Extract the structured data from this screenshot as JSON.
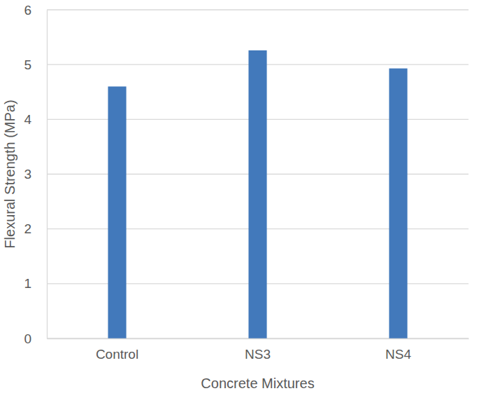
{
  "chart_data": {
    "type": "bar",
    "x_label": "Concrete Mixtures",
    "y_label": "Flexural Strength (MPa)",
    "categories": [
      "Control",
      "NS3",
      "NS4"
    ],
    "values": [
      4.6,
      5.26,
      4.93
    ],
    "color": "#4279bb",
    "ylim": [
      0,
      6
    ],
    "yticks": [
      0,
      1,
      2,
      3,
      4,
      5,
      6
    ],
    "grid": true
  }
}
